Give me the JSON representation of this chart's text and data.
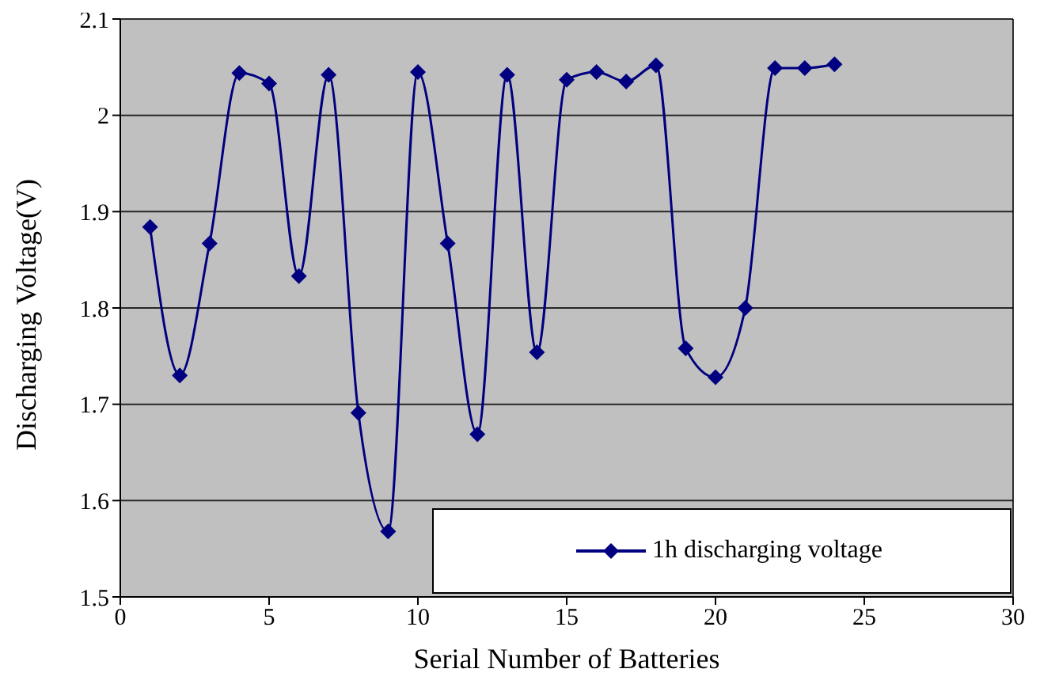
{
  "chart_data": {
    "type": "line",
    "xlabel": "Serial Number of Batteries",
    "ylabel": "Discharging Voltage(V)",
    "x": [
      1,
      2,
      3,
      4,
      5,
      6,
      7,
      8,
      9,
      10,
      11,
      12,
      13,
      14,
      15,
      16,
      17,
      18,
      19,
      20,
      21,
      22,
      23,
      24
    ],
    "series": [
      {
        "name": "1h discharging voltage",
        "color": "#000080",
        "values": [
          1.884,
          1.73,
          1.867,
          2.044,
          2.033,
          1.833,
          2.042,
          1.691,
          1.568,
          2.045,
          1.867,
          1.669,
          2.042,
          1.754,
          2.037,
          2.045,
          2.035,
          2.052,
          1.758,
          1.728,
          1.8,
          2.049,
          2.049,
          2.053
        ]
      }
    ],
    "xlim": [
      0,
      30
    ],
    "xticks": [
      0,
      5,
      10,
      15,
      20,
      25,
      30
    ],
    "ylim": [
      1.5,
      2.1
    ],
    "yticks": [
      1.5,
      1.6,
      1.7,
      1.8,
      1.9,
      2,
      2.1
    ],
    "grid": "y",
    "legend": "bottom right",
    "marker": "diamond",
    "line_style": "solid"
  }
}
